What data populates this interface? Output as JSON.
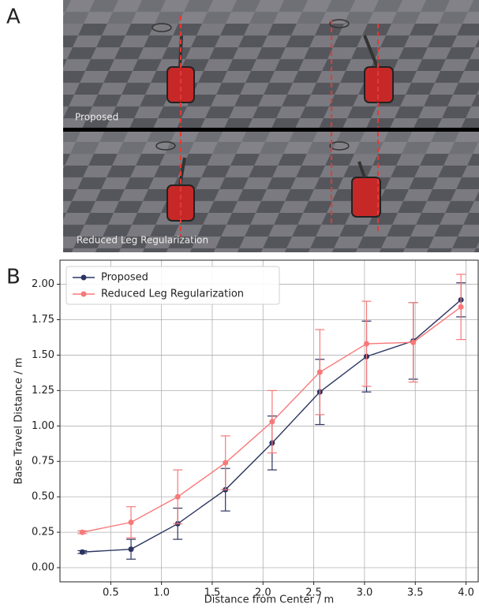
{
  "panels": {
    "a_label": "A",
    "b_label": "B",
    "top_caption": "Proposed",
    "bottom_caption": "Reduced Leg Regularization"
  },
  "chart_data": {
    "type": "line",
    "x_label": "Distance from Center / m",
    "y_label": "Base Travel Distance / m",
    "x": [
      0.22,
      0.7,
      1.16,
      1.63,
      2.09,
      2.56,
      3.02,
      3.48,
      3.95
    ],
    "series": [
      {
        "name": "Proposed",
        "color": "#2b3560",
        "values": [
          0.11,
          0.13,
          0.31,
          0.55,
          0.88,
          1.24,
          1.49,
          1.6,
          1.89
        ],
        "errors": [
          0.01,
          0.07,
          0.11,
          0.15,
          0.19,
          0.23,
          0.25,
          0.27,
          0.12
        ]
      },
      {
        "name": "Reduced Leg Regularization",
        "color": "#f87878",
        "values": [
          0.25,
          0.32,
          0.5,
          0.74,
          1.03,
          1.38,
          1.58,
          1.59,
          1.84
        ],
        "errors": [
          0.01,
          0.11,
          0.19,
          0.19,
          0.22,
          0.3,
          0.3,
          0.28,
          0.23
        ]
      }
    ],
    "xlim": [
      0,
      4.12
    ],
    "ylim": [
      -0.1,
      2.17
    ],
    "xticks": [
      0.5,
      {
        "value": 1,
        "label": "1.0"
      },
      1.5,
      {
        "value": 2,
        "label": "2.0"
      },
      2.5,
      {
        "value": 3,
        "label": "3.0"
      },
      3.5,
      {
        "value": 4,
        "label": "4.0"
      }
    ],
    "yticks": [
      {
        "value": 0,
        "label": "0.00"
      },
      {
        "value": 0.25,
        "label": "0.25"
      },
      {
        "value": 0.5,
        "label": "0.50"
      },
      {
        "value": 0.75,
        "label": "0.75"
      },
      {
        "value": 1,
        "label": "1.00"
      },
      {
        "value": 1.25,
        "label": "1.25"
      },
      {
        "value": 1.5,
        "label": "1.50"
      },
      {
        "value": 1.75,
        "label": "1.75"
      },
      {
        "value": 2,
        "label": "2.00"
      }
    ],
    "grid": true,
    "legend": "upper-left"
  }
}
